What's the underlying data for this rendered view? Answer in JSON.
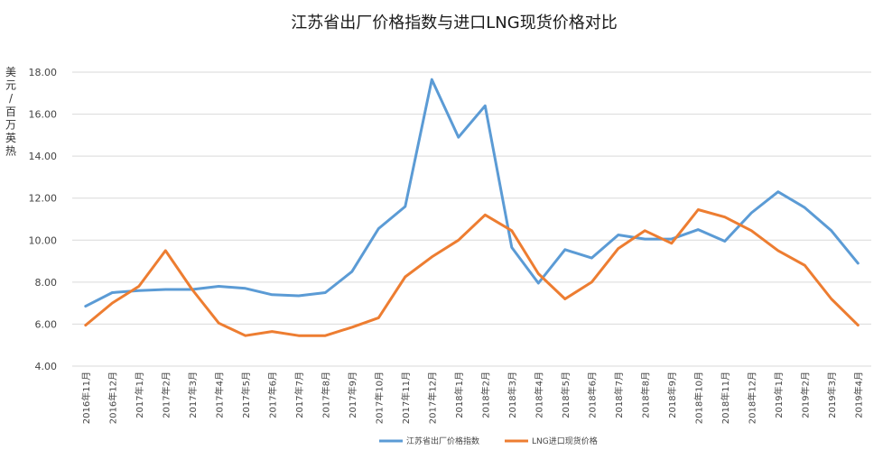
{
  "chart_data": {
    "type": "line",
    "title": "江苏省出厂价格指数与进口LNG现货价格对比",
    "ylabel_chars": [
      "美",
      "元",
      "/",
      "百",
      "万",
      "英",
      "热"
    ],
    "ylim": [
      4,
      18
    ],
    "yticks": [
      "4.00",
      "6.00",
      "8.00",
      "10.00",
      "12.00",
      "14.00",
      "16.00",
      "18.00"
    ],
    "ytick_values": [
      4,
      6,
      8,
      10,
      12,
      14,
      16,
      18
    ],
    "categories": [
      "2016年11月",
      "2016年12月",
      "2017年1月",
      "2017年2月",
      "2017年3月",
      "2017年4月",
      "2017年5月",
      "2017年6月",
      "2017年7月",
      "2017年8月",
      "2017年9月",
      "2017年10月",
      "2017年11月",
      "2017年12月",
      "2018年1月",
      "2018年2月",
      "2018年3月",
      "2018年4月",
      "2018年5月",
      "2018年6月",
      "2018年7月",
      "2018年8月",
      "2018年9月",
      "2018年10月",
      "2018年11月",
      "2018年12月",
      "2019年1月",
      "2019年2月",
      "2019年3月",
      "2019年4月"
    ],
    "series": [
      {
        "name": "江苏省出厂价格指数",
        "color": "#5b9bd5",
        "values": [
          6.85,
          7.5,
          7.6,
          7.65,
          7.65,
          7.8,
          7.7,
          7.4,
          7.35,
          7.5,
          8.5,
          10.55,
          11.6,
          17.65,
          14.9,
          16.4,
          9.65,
          7.95,
          9.55,
          9.15,
          10.25,
          10.05,
          10.05,
          10.5,
          9.95,
          11.3,
          12.3,
          11.55,
          10.45,
          8.9
        ]
      },
      {
        "name": "LNG进口现货价格",
        "color": "#ed7d31",
        "values": [
          5.95,
          7.0,
          7.8,
          9.5,
          7.65,
          6.05,
          5.45,
          5.65,
          5.45,
          5.45,
          5.85,
          6.3,
          8.25,
          9.2,
          10.0,
          11.2,
          10.45,
          8.4,
          7.2,
          8.0,
          9.6,
          10.45,
          9.85,
          11.45,
          11.1,
          10.45,
          9.5,
          8.8,
          7.2,
          5.95
        ]
      }
    ],
    "grid": true,
    "legend_position": "bottom-center"
  }
}
